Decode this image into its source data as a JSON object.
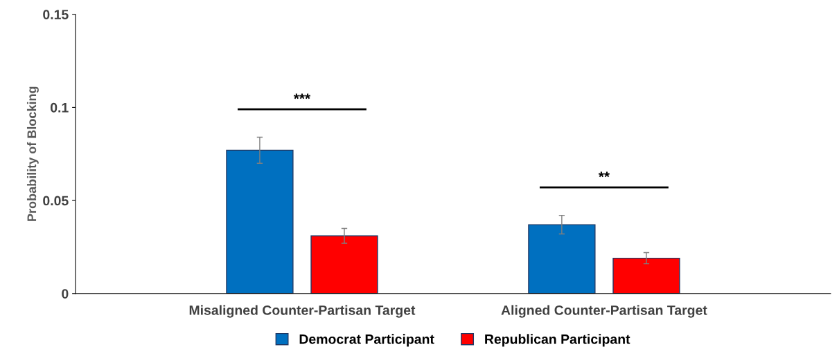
{
  "chart_data": {
    "type": "bar",
    "ylabel": "Probability of Blocking",
    "categories": [
      "Misaligned Counter-Partisan Target",
      "Aligned Counter-Partisan Target"
    ],
    "series": [
      {
        "name": "Democrat Participant",
        "color": "#0070c0",
        "values": [
          0.077,
          0.037
        ],
        "errors": [
          0.007,
          0.005
        ]
      },
      {
        "name": "Republican Participant",
        "color": "#ff0000",
        "values": [
          0.031,
          0.019
        ],
        "errors": [
          0.004,
          0.003
        ]
      }
    ],
    "ylim": [
      0,
      0.15
    ],
    "yticks": [
      0,
      0.05,
      {
        "value": 0.1,
        "label": "0.1"
      },
      0.15
    ],
    "annotations": [
      "***",
      "**"
    ],
    "grid": false,
    "legend": "bottom"
  }
}
